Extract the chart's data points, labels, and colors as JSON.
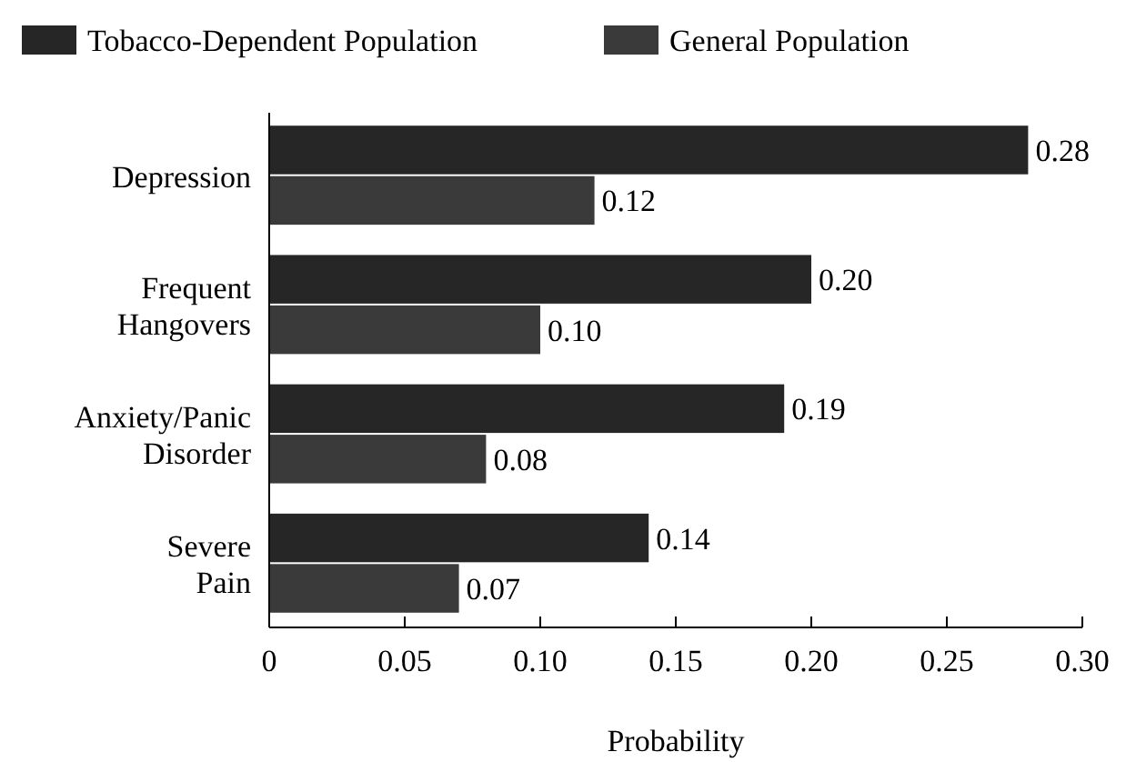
{
  "chart_data": {
    "type": "bar",
    "orientation": "horizontal",
    "xlabel": "Probability",
    "categories": [
      "Depression",
      "Frequent Hangovers",
      "Anxiety/Panic Disorder",
      "Severe Pain"
    ],
    "series": [
      {
        "name": "Tobacco-Dependent Population",
        "color": "#262626",
        "values": [
          0.28,
          0.2,
          0.19,
          0.14
        ],
        "value_labels": [
          "0.28",
          "0.20",
          "0.19",
          "0.14"
        ]
      },
      {
        "name": "General Population",
        "color": "#3a3a3a",
        "values": [
          0.12,
          0.1,
          0.08,
          0.07
        ],
        "value_labels": [
          "0.12",
          "0.10",
          "0.08",
          "0.07"
        ]
      }
    ],
    "xlim": [
      0,
      0.3
    ],
    "xticks": [
      0,
      0.05,
      {
        "value": 0.1,
        "label": "0.10"
      },
      0.15,
      {
        "value": 0.2,
        "label": "0.20"
      },
      0.25,
      {
        "value": 0.3,
        "label": "0.30"
      }
    ],
    "legend": "top left",
    "grid": false
  }
}
